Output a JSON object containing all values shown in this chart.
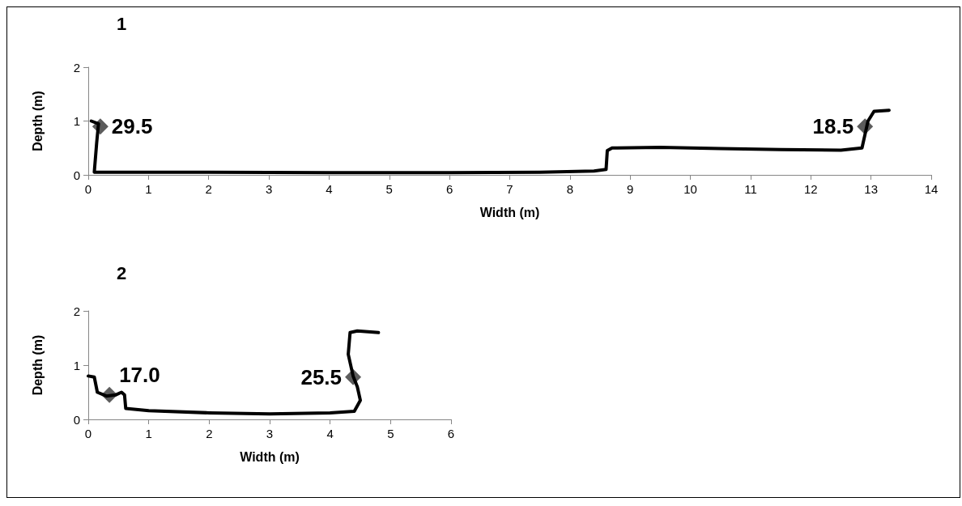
{
  "chart_data": [
    {
      "type": "line",
      "title": "1",
      "xlabel": "Width (m)",
      "ylabel": "Depth (m)",
      "xlim": [
        0,
        14
      ],
      "xticks": [
        0,
        1,
        2,
        3,
        4,
        5,
        6,
        7,
        8,
        9,
        10,
        11,
        12,
        13,
        14
      ],
      "ylim": [
        0,
        2
      ],
      "yticks": [
        0,
        1,
        2
      ],
      "grid": false,
      "series": [
        {
          "color": "#000000",
          "marker": "none",
          "x": [
            0.05,
            0.17,
            0.14,
            0.1,
            0.3,
            2,
            4,
            6,
            7.5,
            8.4,
            8.6,
            8.62,
            8.7,
            9.5,
            10.5,
            11.5,
            12.5,
            12.85,
            12.9,
            12.95,
            13.05,
            13.3
          ],
          "values": [
            1.0,
            0.95,
            0.6,
            0.05,
            0.05,
            0.05,
            0.04,
            0.04,
            0.05,
            0.07,
            0.1,
            0.45,
            0.5,
            0.51,
            0.49,
            0.47,
            0.46,
            0.5,
            0.75,
            1.0,
            1.18,
            1.2
          ]
        },
        {
          "type": "scatter",
          "color": "#333333",
          "marker": "diamond",
          "x": [
            0.2,
            12.9
          ],
          "values": [
            0.9,
            0.9
          ]
        }
      ],
      "annotations": [
        {
          "text": "29.5",
          "x": 0.2,
          "y": 0.9
        },
        {
          "text": "18.5",
          "x": 12.9,
          "y": 0.9
        }
      ]
    },
    {
      "type": "line",
      "title": "2",
      "xlabel": "Width (m)",
      "ylabel": "Depth (m)",
      "xlim": [
        0,
        6
      ],
      "xticks": [
        0,
        1,
        2,
        3,
        4,
        5,
        6
      ],
      "ylim": [
        0,
        2
      ],
      "yticks": [
        0,
        1,
        2
      ],
      "grid": false,
      "series": [
        {
          "color": "#000000",
          "marker": "none",
          "x": [
            0,
            0.1,
            0.15,
            0.3,
            0.45,
            0.55,
            0.6,
            0.62,
            1,
            2,
            3,
            4,
            4.4,
            4.5,
            4.45,
            4.38,
            4.3,
            4.33,
            4.45,
            4.8
          ],
          "values": [
            0.8,
            0.78,
            0.5,
            0.43,
            0.45,
            0.5,
            0.45,
            0.2,
            0.16,
            0.12,
            0.1,
            0.12,
            0.15,
            0.35,
            0.6,
            0.8,
            1.2,
            1.6,
            1.63,
            1.6
          ]
        },
        {
          "type": "scatter",
          "color": "#333333",
          "marker": "diamond",
          "x": [
            0.35,
            4.38
          ],
          "values": [
            0.45,
            0.78
          ]
        }
      ],
      "annotations": [
        {
          "text": "17.0",
          "x": 0.35,
          "y": 0.45
        },
        {
          "text": "25.5",
          "x": 4.38,
          "y": 0.78
        }
      ]
    }
  ]
}
